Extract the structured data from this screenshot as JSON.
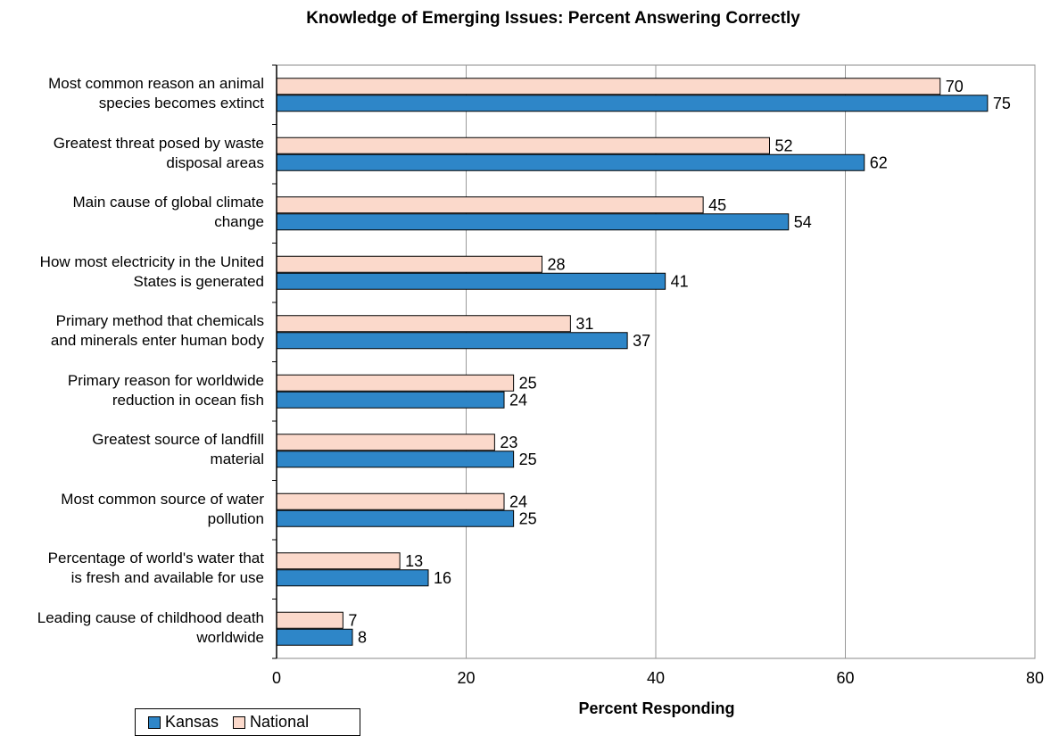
{
  "chart_data": {
    "type": "bar",
    "orientation": "horizontal",
    "title": "Knowledge of Emerging Issues: Percent Answering Correctly",
    "xlabel": "Percent Responding",
    "ylabel": "",
    "xlim": [
      0,
      80
    ],
    "xticks": [
      0,
      20,
      40,
      60,
      80
    ],
    "grid": true,
    "legend_position": "bottom-left",
    "categories": [
      "Most common reason an animal species becomes extinct",
      "Greatest threat posed by waste disposal areas",
      "Main cause of global climate change",
      "How most electricity in the United States is generated",
      "Primary method that chemicals and minerals enter human body",
      "Primary reason for worldwide reduction in ocean fish",
      "Greatest source of landfill material",
      "Most common source of water pollution",
      "Percentage of world's water that is fresh and available for use",
      "Leading cause of childhood death worldwide"
    ],
    "category_lines": [
      [
        "Most common reason an animal",
        "species becomes extinct"
      ],
      [
        "Greatest threat posed by waste",
        "disposal areas"
      ],
      [
        "Main cause of global climate",
        "change"
      ],
      [
        "How most electricity in the United",
        "States is generated"
      ],
      [
        "Primary method that chemicals",
        "and minerals enter human body"
      ],
      [
        "Primary reason for worldwide",
        "reduction in ocean fish"
      ],
      [
        "Greatest source of landfill",
        "material"
      ],
      [
        "Most common source of water",
        "pollution"
      ],
      [
        "Percentage of world's water that",
        "is fresh and available for use"
      ],
      [
        "Leading cause of childhood death",
        "worldwide"
      ]
    ],
    "series": [
      {
        "name": "National",
        "color": "#fbd9cb",
        "values": [
          70,
          52,
          45,
          28,
          31,
          25,
          23,
          24,
          13,
          7
        ]
      },
      {
        "name": "Kansas",
        "color": "#2e86c8",
        "values": [
          75,
          62,
          54,
          41,
          37,
          24,
          25,
          25,
          16,
          8
        ]
      }
    ],
    "legend_order": [
      "Kansas",
      "National"
    ]
  }
}
